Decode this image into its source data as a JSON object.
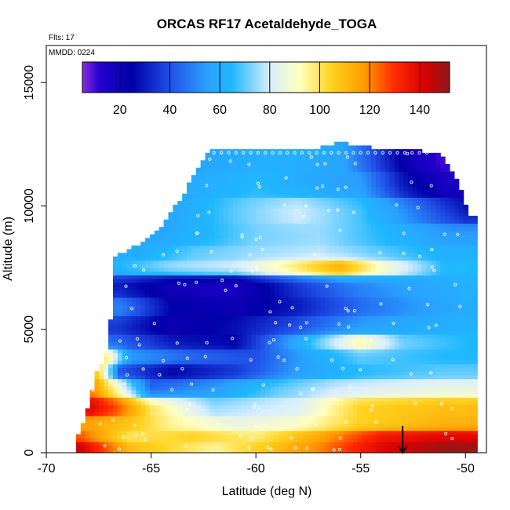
{
  "chart_data": {
    "type": "heatmap",
    "title": "ORCAS RF17 Acetaldehyde_TOGA",
    "flts_label": "Flts: 17",
    "mmdd_label": "MMDD: 0224",
    "xlabel": "Latitude (deg N)",
    "ylabel": "Altitude (m)",
    "xlim": [
      -70,
      -49
    ],
    "ylim": [
      0,
      16500
    ],
    "x_ticks": [
      -70,
      -65,
      -60,
      -55,
      -50
    ],
    "x_tick_labels": [
      "-70",
      "-65",
      "-60",
      "-55",
      "-50"
    ],
    "y_ticks": [
      0,
      5000,
      10000,
      15000
    ],
    "y_tick_labels": [
      "0",
      "5000",
      "10000",
      "15000"
    ],
    "colorbar": {
      "range": [
        5,
        152
      ],
      "ticks": [
        20,
        40,
        60,
        80,
        100,
        120,
        140
      ],
      "tick_labels": [
        "20",
        "40",
        "60",
        "80",
        "100",
        "120",
        "140"
      ],
      "colors": [
        {
          "v": 5,
          "c": "#8a2be2"
        },
        {
          "v": 12,
          "c": "#2200cc"
        },
        {
          "v": 25,
          "c": "#0000a8"
        },
        {
          "v": 40,
          "c": "#2050e8"
        },
        {
          "v": 55,
          "c": "#2aa0ff"
        },
        {
          "v": 65,
          "c": "#20b8ff"
        },
        {
          "v": 80,
          "c": "#d8eeff"
        },
        {
          "v": 92,
          "c": "#ffffc0"
        },
        {
          "v": 105,
          "c": "#ffd21e"
        },
        {
          "v": 118,
          "c": "#ff9a00"
        },
        {
          "v": 130,
          "c": "#ff2a00"
        },
        {
          "v": 142,
          "c": "#d80000"
        },
        {
          "v": 152,
          "c": "#8b1a1a"
        }
      ]
    },
    "domain_boundary": {
      "top_edge": [
        {
          "lat": -66.8,
          "alt": 7800
        },
        {
          "lat": -65.8,
          "alt": 8300
        },
        {
          "lat": -64.8,
          "alt": 8800
        },
        {
          "lat": -63.6,
          "alt": 10200
        },
        {
          "lat": -62.2,
          "alt": 12300
        },
        {
          "lat": -57.0,
          "alt": 12300
        },
        {
          "lat": -56.0,
          "alt": 12500
        },
        {
          "lat": -54.5,
          "alt": 12300
        },
        {
          "lat": -52.5,
          "alt": 12200
        },
        {
          "lat": -51.2,
          "alt": 12000
        },
        {
          "lat": -50.4,
          "alt": 11000
        },
        {
          "lat": -49.8,
          "alt": 9500
        }
      ],
      "left_edge": [
        {
          "lat": -68.7,
          "alt": 0
        },
        {
          "lat": -68.5,
          "alt": 700
        },
        {
          "lat": -68.0,
          "alt": 1800
        },
        {
          "lat": -67.6,
          "alt": 3300
        },
        {
          "lat": -67.0,
          "alt": 4200
        },
        {
          "lat": -66.8,
          "alt": 7800
        }
      ],
      "right_edge": [
        {
          "lat": -49.8,
          "alt": 9500
        },
        {
          "lat": -49.8,
          "alt": 0
        }
      ]
    },
    "series": [
      {
        "name": "layer",
        "alt": 200,
        "thickness": 400,
        "lat_range": [
          -68.7,
          -49.8
        ],
        "values_by_lat": [
          [
            -68.5,
            145
          ],
          [
            -66,
            110
          ],
          [
            -62,
            95
          ],
          [
            -57,
            120
          ],
          [
            -54,
            140
          ],
          [
            -51,
            150
          ]
        ]
      },
      {
        "name": "layer",
        "alt": 650,
        "thickness": 500,
        "lat_range": [
          -68.6,
          -49.8
        ],
        "values_by_lat": [
          [
            -68.3,
            125
          ],
          [
            -66,
            100
          ],
          [
            -63,
            105
          ],
          [
            -60,
            98
          ],
          [
            -57,
            115
          ],
          [
            -54,
            135
          ],
          [
            -51,
            140
          ]
        ]
      },
      {
        "name": "layer",
        "alt": 1200,
        "thickness": 600,
        "lat_range": [
          -68.3,
          -49.8
        ],
        "values_by_lat": [
          [
            -68,
            115
          ],
          [
            -66,
            108
          ],
          [
            -64,
            95
          ],
          [
            -61,
            85
          ],
          [
            -58,
            90
          ],
          [
            -55,
            105
          ],
          [
            -51,
            112
          ]
        ]
      },
      {
        "name": "layer",
        "alt": 1850,
        "thickness": 700,
        "lat_range": [
          -68.1,
          -49.8
        ],
        "values_by_lat": [
          [
            -67.8,
            140
          ],
          [
            -66.5,
            125
          ],
          [
            -65,
            100
          ],
          [
            -62,
            75
          ],
          [
            -58,
            82
          ],
          [
            -55,
            105
          ],
          [
            -51,
            110
          ]
        ]
      },
      {
        "name": "layer",
        "alt": 2600,
        "thickness": 800,
        "lat_range": [
          -67.9,
          -49.8
        ],
        "values_by_lat": [
          [
            -67.7,
            118
          ],
          [
            -66.5,
            90
          ],
          [
            -65,
            45
          ],
          [
            -62,
            55
          ],
          [
            -59,
            70
          ],
          [
            -56,
            80
          ],
          [
            -51,
            85
          ]
        ]
      },
      {
        "name": "layer",
        "alt": 3300,
        "thickness": 600,
        "lat_range": [
          -67.6,
          -49.8
        ],
        "values_by_lat": [
          [
            -67.5,
            105
          ],
          [
            -66.5,
            40
          ],
          [
            -64,
            25
          ],
          [
            -61,
            35
          ],
          [
            -58,
            55
          ],
          [
            -55,
            65
          ],
          [
            -51,
            70
          ]
        ]
      },
      {
        "name": "layer",
        "alt": 3900,
        "thickness": 700,
        "lat_range": [
          -67.3,
          -49.8
        ],
        "values_by_lat": [
          [
            -67.1,
            98
          ],
          [
            -66,
            55
          ],
          [
            -63,
            45
          ],
          [
            -60,
            40
          ],
          [
            -57,
            60
          ],
          [
            -55,
            70
          ],
          [
            -51,
            65
          ]
        ]
      },
      {
        "name": "layer",
        "alt": 4500,
        "thickness": 600,
        "lat_range": [
          -67.0,
          -49.6
        ],
        "values_by_lat": [
          [
            -66.8,
            45
          ],
          [
            -64,
            30
          ],
          [
            -61,
            25
          ],
          [
            -58,
            60
          ],
          [
            -55,
            95
          ],
          [
            -53,
            72
          ],
          [
            -50,
            65
          ]
        ]
      },
      {
        "name": "layer",
        "alt": 5100,
        "thickness": 700,
        "lat_range": [
          -66.9,
          -49.8
        ],
        "values_by_lat": [
          [
            -66.6,
            35
          ],
          [
            -64,
            20
          ],
          [
            -61,
            28
          ],
          [
            -58,
            40
          ],
          [
            -55,
            55
          ],
          [
            -52,
            60
          ],
          [
            -50,
            62
          ]
        ]
      },
      {
        "name": "layer",
        "alt": 5900,
        "thickness": 900,
        "lat_range": [
          -66.8,
          -49.8
        ],
        "values_by_lat": [
          [
            -66.5,
            50
          ],
          [
            -64,
            25
          ],
          [
            -61,
            20
          ],
          [
            -58,
            30
          ],
          [
            -55,
            45
          ],
          [
            -52,
            55
          ],
          [
            -50,
            60
          ]
        ]
      },
      {
        "name": "layer",
        "alt": 6800,
        "thickness": 900,
        "lat_range": [
          -66.8,
          -49.8
        ],
        "values_by_lat": [
          [
            -66.5,
            30
          ],
          [
            -64,
            18
          ],
          [
            -61,
            15
          ],
          [
            -58,
            35
          ],
          [
            -55,
            50
          ],
          [
            -52,
            58
          ],
          [
            -50,
            62
          ]
        ]
      },
      {
        "name": "layer",
        "alt": 7500,
        "thickness": 600,
        "lat_range": [
          -66.8,
          -49.8
        ],
        "values_by_lat": [
          [
            -66.5,
            65
          ],
          [
            -64,
            75
          ],
          [
            -61,
            80
          ],
          [
            -58,
            100
          ],
          [
            -56,
            115
          ],
          [
            -54,
            92
          ],
          [
            -51,
            65
          ]
        ]
      },
      {
        "name": "layer",
        "alt": 8100,
        "thickness": 600,
        "lat_range": [
          -65.8,
          -49.8
        ],
        "values_by_lat": [
          [
            -65.5,
            60
          ],
          [
            -63,
            70
          ],
          [
            -60,
            75
          ],
          [
            -57,
            78
          ],
          [
            -54,
            70
          ],
          [
            -51,
            62
          ]
        ]
      },
      {
        "name": "layer",
        "alt": 8800,
        "thickness": 900,
        "lat_range": [
          -64.8,
          -49.8
        ],
        "values_by_lat": [
          [
            -64.5,
            58
          ],
          [
            -62,
            65
          ],
          [
            -60,
            72
          ],
          [
            -57,
            75
          ],
          [
            -54,
            65
          ],
          [
            -51,
            55
          ]
        ]
      },
      {
        "name": "layer",
        "alt": 9800,
        "thickness": 1100,
        "lat_range": [
          -64.0,
          -49.8
        ],
        "values_by_lat": [
          [
            -63.8,
            58
          ],
          [
            -61,
            70
          ],
          [
            -58,
            80
          ],
          [
            -55,
            68
          ],
          [
            -52,
            45
          ],
          [
            -50,
            30
          ]
        ]
      },
      {
        "name": "layer",
        "alt": 10900,
        "thickness": 1000,
        "lat_range": [
          -63.0,
          -50.2
        ],
        "values_by_lat": [
          [
            -62.8,
            60
          ],
          [
            -60,
            65
          ],
          [
            -57,
            58
          ],
          [
            -55,
            55
          ],
          [
            -53,
            30
          ],
          [
            -51,
            15
          ]
        ]
      },
      {
        "name": "layer",
        "alt": 11900,
        "thickness": 900,
        "lat_range": [
          -62.2,
          -51.0
        ],
        "values_by_lat": [
          [
            -62,
            58
          ],
          [
            -59,
            62
          ],
          [
            -56,
            58
          ],
          [
            -54,
            35
          ],
          [
            -52.5,
            18
          ],
          [
            -51.2,
            10
          ]
        ]
      }
    ],
    "wind_arrow": {
      "lat": -53.0,
      "alt_top": 700,
      "alt_bottom": 0,
      "direction": "down"
    }
  }
}
